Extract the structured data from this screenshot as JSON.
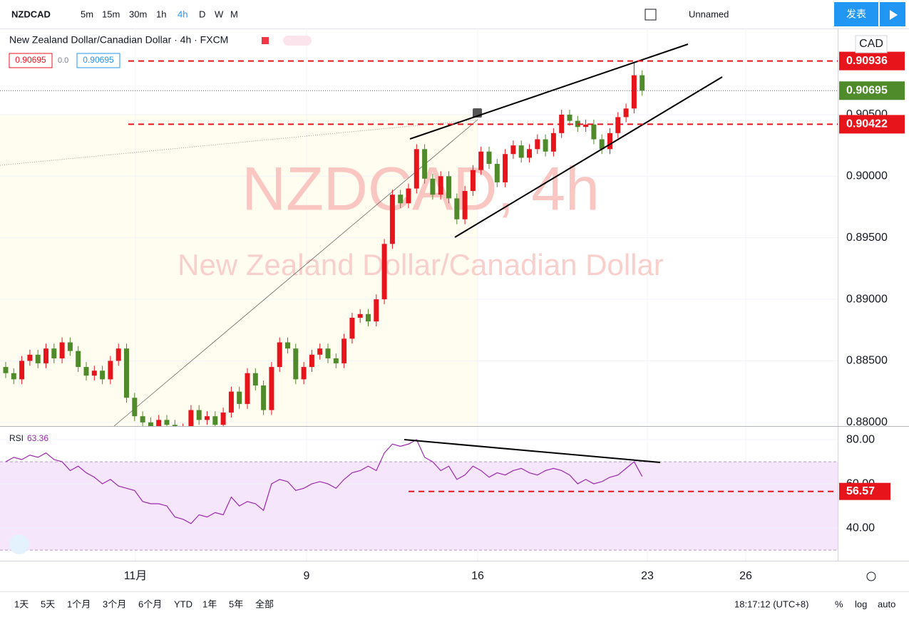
{
  "toolbar": {
    "symbol": "NZDCAD",
    "intervals": [
      "5m",
      "15m",
      "30m",
      "1h",
      "4h",
      "D",
      "W",
      "M"
    ],
    "layout_name": "Unnamed",
    "publish": "发表"
  },
  "chart_data": {
    "type": "candlestick",
    "title": "New Zealand Dollar/Canadian Dollar · 4h · FXCM",
    "watermark": "NZDCAD, 4h",
    "watermark_sub": "New Zealand Dollar/Canadian Dollar",
    "legend_change": "0.0",
    "currency": "CAD",
    "up_color": "#e8141c",
    "down_color": "#4f8a2b",
    "ylim": [
      0.8797,
      0.912
    ],
    "yticks": [
      {
        "value": 0.88,
        "label": "0.88000"
      },
      {
        "value": 0.885,
        "label": "0.88500"
      },
      {
        "value": 0.89,
        "label": "0.89000"
      },
      {
        "value": 0.895,
        "label": "0.89500"
      },
      {
        "value": 0.9,
        "label": "0.90000"
      },
      {
        "value": 0.905,
        "label": "0.90500"
      }
    ],
    "price_lines": [
      {
        "value": 0.90936,
        "color": "#e8141c"
      },
      {
        "value": 0.90422,
        "color": "#e8141c"
      }
    ],
    "ohlc": [
      [
        0.8845,
        0.8849,
        0.8836,
        0.884
      ],
      [
        0.884,
        0.8844,
        0.8831,
        0.8835
      ],
      [
        0.8835,
        0.8854,
        0.8831,
        0.885
      ],
      [
        0.885,
        0.8859,
        0.8846,
        0.8855
      ],
      [
        0.8855,
        0.8859,
        0.8844,
        0.8848
      ],
      [
        0.8848,
        0.8864,
        0.8844,
        0.886
      ],
      [
        0.886,
        0.8864,
        0.8848,
        0.8852
      ],
      [
        0.8852,
        0.8869,
        0.8848,
        0.8865
      ],
      [
        0.8865,
        0.8869,
        0.8854,
        0.8858
      ],
      [
        0.8858,
        0.8862,
        0.8841,
        0.8845
      ],
      [
        0.8845,
        0.8849,
        0.8834,
        0.8838
      ],
      [
        0.8838,
        0.8846,
        0.8834,
        0.8842
      ],
      [
        0.8842,
        0.8846,
        0.8831,
        0.8835
      ],
      [
        0.8835,
        0.8854,
        0.8831,
        0.885
      ],
      [
        0.885,
        0.8864,
        0.8846,
        0.886
      ],
      [
        0.886,
        0.8864,
        0.8816,
        0.882
      ],
      [
        0.882,
        0.8824,
        0.8801,
        0.8805
      ],
      [
        0.8805,
        0.8809,
        0.8796,
        0.88
      ],
      [
        0.88,
        0.8804,
        0.8791,
        0.8795
      ],
      [
        0.8795,
        0.8806,
        0.8791,
        0.8802
      ],
      [
        0.8802,
        0.8806,
        0.8794,
        0.8798
      ],
      [
        0.8798,
        0.8802,
        0.8786,
        0.879
      ],
      [
        0.879,
        0.8799,
        0.8786,
        0.8795
      ],
      [
        0.8795,
        0.8814,
        0.8791,
        0.881
      ],
      [
        0.881,
        0.8814,
        0.8798,
        0.8802
      ],
      [
        0.8802,
        0.8809,
        0.8798,
        0.8805
      ],
      [
        0.8805,
        0.8809,
        0.8794,
        0.8798
      ],
      [
        0.8798,
        0.8812,
        0.8794,
        0.8808
      ],
      [
        0.8808,
        0.8829,
        0.8804,
        0.8825
      ],
      [
        0.8825,
        0.8829,
        0.8811,
        0.8815
      ],
      [
        0.8815,
        0.8844,
        0.8811,
        0.884
      ],
      [
        0.884,
        0.8844,
        0.8826,
        0.883
      ],
      [
        0.883,
        0.8834,
        0.8806,
        0.881
      ],
      [
        0.881,
        0.8849,
        0.8806,
        0.8845
      ],
      [
        0.8845,
        0.8869,
        0.8841,
        0.8865
      ],
      [
        0.8865,
        0.8869,
        0.8856,
        0.886
      ],
      [
        0.886,
        0.8864,
        0.8831,
        0.8835
      ],
      [
        0.8835,
        0.8849,
        0.8831,
        0.8845
      ],
      [
        0.8845,
        0.8859,
        0.8841,
        0.8855
      ],
      [
        0.8855,
        0.8864,
        0.8851,
        0.886
      ],
      [
        0.886,
        0.8864,
        0.8848,
        0.8852
      ],
      [
        0.8852,
        0.8856,
        0.8844,
        0.8848
      ],
      [
        0.8848,
        0.8872,
        0.8844,
        0.8868
      ],
      [
        0.8868,
        0.8889,
        0.8864,
        0.8885
      ],
      [
        0.8885,
        0.8892,
        0.8881,
        0.8888
      ],
      [
        0.8888,
        0.8892,
        0.8878,
        0.8882
      ],
      [
        0.8882,
        0.8904,
        0.8878,
        0.89
      ],
      [
        0.89,
        0.8949,
        0.8896,
        0.8945
      ],
      [
        0.8945,
        0.8989,
        0.8941,
        0.8985
      ],
      [
        0.8985,
        0.8989,
        0.8974,
        0.8978
      ],
      [
        0.8978,
        0.8994,
        0.8974,
        0.899
      ],
      [
        0.899,
        0.9026,
        0.8986,
        0.9022
      ],
      [
        0.9022,
        0.9026,
        0.8994,
        0.8998
      ],
      [
        0.8998,
        0.9002,
        0.8981,
        0.8985
      ],
      [
        0.8985,
        0.9004,
        0.8981,
        0.9
      ],
      [
        0.9,
        0.9004,
        0.8978,
        0.8982
      ],
      [
        0.8982,
        0.8986,
        0.8961,
        0.8965
      ],
      [
        0.8965,
        0.8992,
        0.8961,
        0.8988
      ],
      [
        0.8988,
        0.9009,
        0.8984,
        0.9005
      ],
      [
        0.9005,
        0.9024,
        0.9001,
        0.902
      ],
      [
        0.902,
        0.9024,
        0.9006,
        0.901
      ],
      [
        0.901,
        0.9014,
        0.8991,
        0.8995
      ],
      [
        0.8995,
        0.9022,
        0.8991,
        0.9018
      ],
      [
        0.9018,
        0.9029,
        0.9014,
        0.9025
      ],
      [
        0.9025,
        0.9029,
        0.9011,
        0.9015
      ],
      [
        0.9015,
        0.9026,
        0.9011,
        0.9022
      ],
      [
        0.9022,
        0.9034,
        0.9018,
        0.903
      ],
      [
        0.903,
        0.9034,
        0.9016,
        0.902
      ],
      [
        0.902,
        0.9039,
        0.9016,
        0.9035
      ],
      [
        0.9035,
        0.9054,
        0.9031,
        0.905
      ],
      [
        0.905,
        0.9054,
        0.9041,
        0.9045
      ],
      [
        0.9045,
        0.9049,
        0.9036,
        0.904
      ],
      [
        0.904,
        0.9046,
        0.9036,
        0.9042
      ],
      [
        0.9042,
        0.9046,
        0.9026,
        0.903
      ],
      [
        0.903,
        0.9034,
        0.9018,
        0.9022
      ],
      [
        0.9022,
        0.9039,
        0.9018,
        0.9035
      ],
      [
        0.9035,
        0.9052,
        0.9031,
        0.9048
      ],
      [
        0.9048,
        0.9059,
        0.9044,
        0.9055
      ],
      [
        0.9055,
        0.9093,
        0.9051,
        0.9082
      ],
      [
        0.9082,
        0.9086,
        0.90655,
        0.90695
      ]
    ],
    "rsi": {
      "name": "RSI",
      "color": "#9c27b0",
      "ylim": [
        25.2,
        85.5
      ],
      "band": [
        70,
        30
      ],
      "yticks": [
        {
          "value": 80,
          "label": "80.00"
        },
        {
          "value": 60,
          "label": "60.00"
        },
        {
          "value": 40,
          "label": "40.00"
        }
      ],
      "level": 56.57,
      "values": [
        70,
        72,
        71,
        73,
        72,
        74,
        71,
        70,
        66,
        68,
        65,
        63,
        60,
        62,
        59,
        58,
        57,
        52,
        51,
        51,
        50,
        45,
        44,
        42,
        46,
        45,
        47,
        46,
        54,
        50,
        52,
        51,
        48,
        60,
        62,
        61,
        57,
        58,
        60,
        61,
        60,
        58,
        62,
        65,
        66,
        68,
        66,
        74,
        78,
        77,
        78,
        80,
        72,
        70,
        66,
        68,
        62,
        64,
        68,
        66,
        63,
        65,
        64,
        66,
        67,
        65,
        64,
        66,
        67,
        66,
        64,
        60,
        62,
        60,
        61,
        63,
        64,
        67,
        70,
        63.36
      ]
    },
    "time_labels": [
      "11月",
      "9",
      "16",
      "23",
      "26"
    ]
  },
  "bottom_bar": {
    "ranges": [
      "1天",
      "5天",
      "1个月",
      "3个月",
      "6个月",
      "YTD",
      "1年",
      "5年",
      "全部"
    ],
    "clock": "18:17:12 (UTC+8)",
    "percent": "%",
    "log": "log",
    "auto": "auto"
  }
}
